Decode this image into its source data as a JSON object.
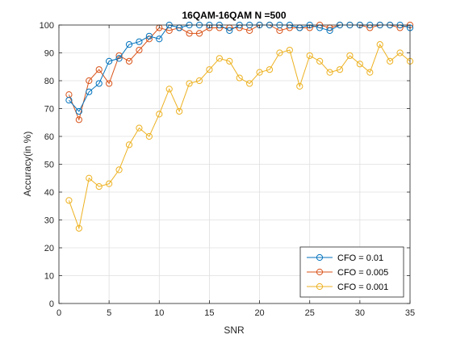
{
  "chart_data": {
    "type": "line",
    "title": "16QAM-16QAM N =500",
    "xlabel": "SNR",
    "ylabel": "Accuracy(in %)",
    "xlim": [
      0,
      35
    ],
    "ylim": [
      0,
      100
    ],
    "xticks": [
      0,
      5,
      10,
      15,
      20,
      25,
      30,
      35
    ],
    "yticks": [
      0,
      10,
      20,
      30,
      40,
      50,
      60,
      70,
      80,
      90,
      100
    ],
    "grid": true,
    "legend_position": "bottom-right",
    "x": [
      1,
      2,
      3,
      4,
      5,
      6,
      7,
      8,
      9,
      10,
      11,
      12,
      13,
      14,
      15,
      16,
      17,
      18,
      19,
      20,
      21,
      22,
      23,
      24,
      25,
      26,
      27,
      28,
      29,
      30,
      31,
      32,
      33,
      34,
      35
    ],
    "series": [
      {
        "name": "CFO = 0.01",
        "color": "#0072BD",
        "values": [
          73,
          69,
          76,
          79,
          87,
          88,
          93,
          94,
          96,
          95,
          100,
          99,
          100,
          100,
          100,
          100,
          98,
          100,
          100,
          100,
          100,
          100,
          100,
          99,
          100,
          99,
          98,
          100,
          100,
          100,
          100,
          100,
          100,
          100,
          99
        ]
      },
      {
        "name": "CFO = 0.005",
        "color": "#D95319",
        "values": [
          75,
          66,
          80,
          84,
          79,
          89,
          87,
          91,
          95,
          99,
          98,
          99,
          97,
          97,
          99,
          99,
          99,
          99,
          98,
          100,
          100,
          98,
          99,
          99,
          99,
          100,
          99,
          100,
          100,
          100,
          99,
          100,
          100,
          99,
          100
        ]
      },
      {
        "name": "CFO = 0.001",
        "color": "#EDB120",
        "values": [
          37,
          27,
          45,
          42,
          43,
          48,
          57,
          63,
          60,
          68,
          77,
          69,
          79,
          80,
          84,
          88,
          87,
          81,
          79,
          83,
          84,
          90,
          91,
          78,
          89,
          87,
          83,
          84,
          89,
          86,
          83,
          93,
          87,
          90,
          87
        ]
      }
    ]
  }
}
